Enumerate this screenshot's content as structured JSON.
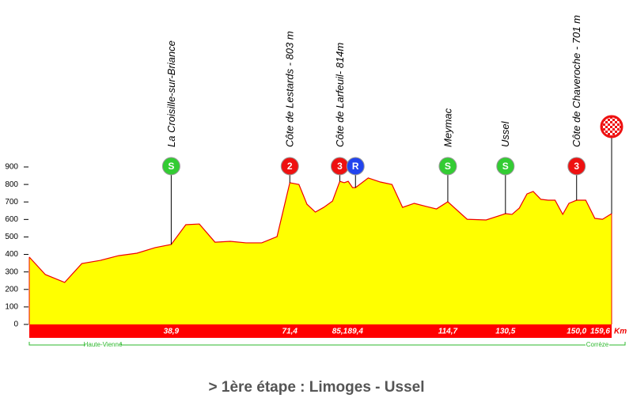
{
  "chart_data": {
    "type": "area",
    "title": "> 1ère étape : Limoges - Ussel",
    "x": [
      0,
      4.4,
      9.7,
      14.4,
      19.5,
      24.5,
      29.5,
      34.5,
      38.9,
      42.9,
      46.6,
      50.9,
      55.1,
      59.4,
      63.7,
      67.9,
      71.4,
      73.9,
      76.1,
      78.4,
      80.7,
      83.1,
      85.1,
      86.3,
      87.4,
      88.6,
      89.4,
      92.9,
      96.2,
      99.4,
      102.3,
      105.5,
      108.8,
      111.6,
      114.7,
      120.0,
      125.2,
      130.5,
      132.3,
      134.3,
      136.4,
      138.1,
      140.2,
      142.2,
      144.1,
      146.2,
      147.9,
      150.0,
      152.5,
      155.0,
      157.1,
      159.6
    ],
    "series": [
      {
        "color": "#ffff00",
        "line_color": "#ee0000",
        "values": [
          385,
          285,
          240,
          348,
          366,
          393,
          407,
          439,
          457,
          570,
          574,
          470,
          475,
          466,
          466,
          502,
          810,
          800,
          687,
          642,
          669,
          705,
          818,
          810,
          818,
          782,
          782,
          837,
          814,
          800,
          669,
          692,
          674,
          660,
          701,
          601,
          597,
          633,
          629,
          665,
          746,
          760,
          715,
          710,
          710,
          629,
          692,
          710,
          710,
          606,
          601,
          633
        ]
      }
    ],
    "xlim": [
      0,
      159.6
    ],
    "ylim": [
      0,
      900
    ],
    "yticks": [
      0,
      100,
      200,
      300,
      400,
      500,
      600,
      700,
      800,
      900
    ],
    "markers": [
      {
        "label": "La Croisille-sur-Briance",
        "km": 38.9,
        "km_label": "38,9",
        "icon": "S",
        "icon_color": "#33cc33"
      },
      {
        "label": "Côte de Lestards - 803 m",
        "km": 71.4,
        "km_label": "71,4",
        "icon": "2",
        "icon_color": "#ee1111"
      },
      {
        "label": "Côte de Larfeuil- 814m",
        "km": 85.1,
        "km_label": "85,1",
        "icon": "3",
        "icon_color": "#ee1111"
      },
      {
        "km": 89.4,
        "km_label": "89,4",
        "icon": "R",
        "icon_color": "#2244ee"
      },
      {
        "label": "Meymac",
        "km": 114.7,
        "km_label": "114,7",
        "icon": "S",
        "icon_color": "#33cc33"
      },
      {
        "label": "Ussel",
        "km": 130.5,
        "km_label": "130,5",
        "icon": "S",
        "icon_color": "#33cc33"
      },
      {
        "label": "Côte de Chaveroche - 701 m",
        "km": 150.0,
        "km_label": "150,0",
        "icon": "3",
        "icon_color": "#ee1111"
      }
    ],
    "finish": {
      "km": 159.6,
      "km_label": "159,6",
      "icon_color": "#ee1111"
    },
    "unit": "Km",
    "regions": [
      "Haute-Vienne",
      "Corrèze"
    ]
  }
}
